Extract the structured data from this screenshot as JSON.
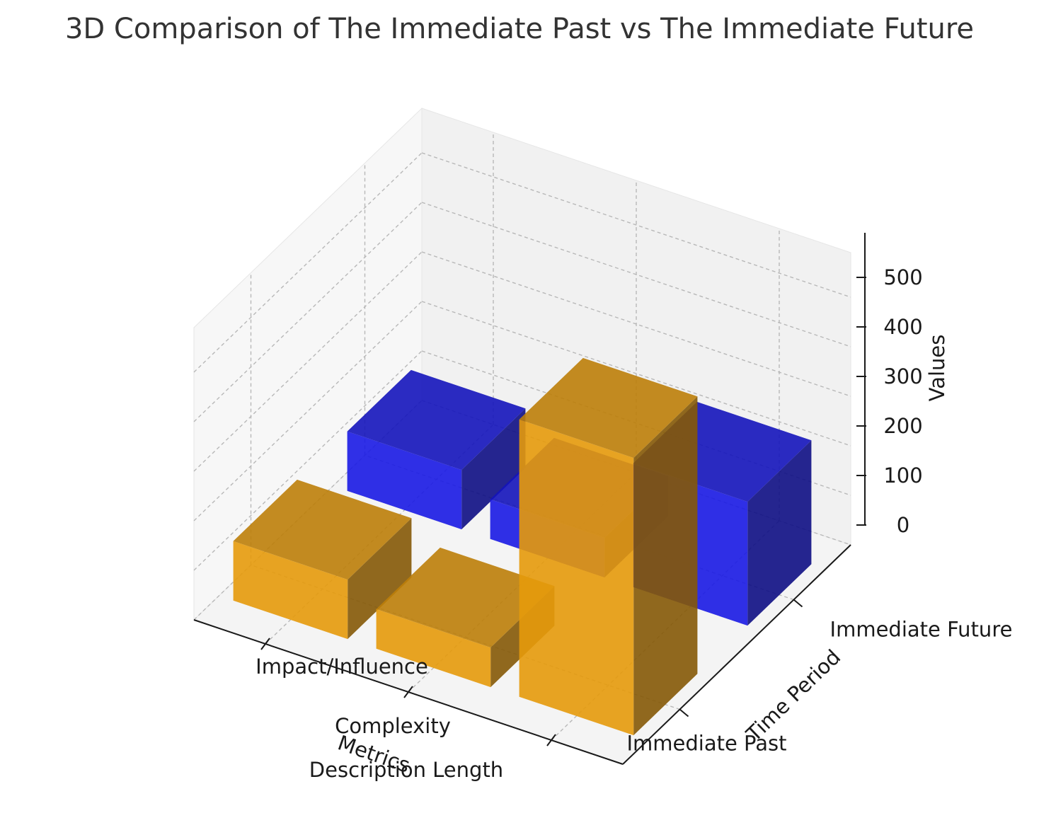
{
  "chart_data": {
    "type": "bar3d",
    "title": "3D Comparison of The Immediate Past vs The Immediate Future",
    "xlabel": "Metrics",
    "ylabel": "Time Period",
    "zlabel": "Values",
    "x_categories": [
      "Description Length",
      "Complexity",
      "Impact/Influence"
    ],
    "y_categories": [
      "Immediate Past",
      "Immediate Future"
    ],
    "zticks": [
      0,
      100,
      200,
      300,
      400,
      500
    ],
    "zlim": [
      0,
      590
    ],
    "grid": true,
    "series": [
      {
        "name": "Immediate Past",
        "color": "#f2a20c",
        "values": [
          560,
          80,
          120
        ]
      },
      {
        "name": "Immediate Future",
        "color": "#1a1af0",
        "values": [
          250,
          80,
          120
        ]
      }
    ]
  }
}
